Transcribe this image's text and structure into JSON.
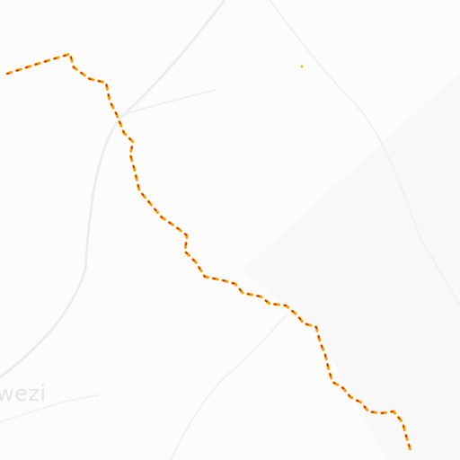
{
  "map": {
    "place_labels": [
      {
        "text": "wezi"
      }
    ],
    "colors": {
      "background": "#fcfcfc",
      "region_shade": "#f8f8f8",
      "road": "#eeeeee",
      "river": "#f0f0f0",
      "boundary_dash_outer": "#ff9a00",
      "boundary_dash_inner": "#c81e00"
    },
    "features": [
      {
        "type": "admin-boundary",
        "style": "dashed"
      },
      {
        "type": "road"
      },
      {
        "type": "river"
      }
    ]
  }
}
